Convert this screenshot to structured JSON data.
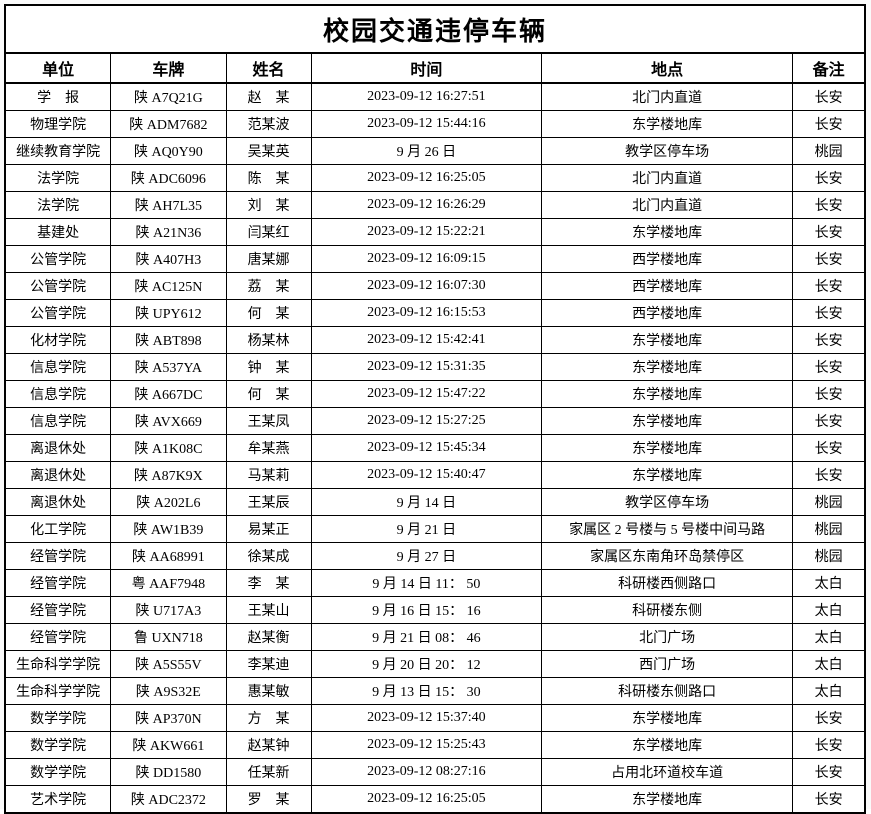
{
  "title": "校园交通违停车辆",
  "table": {
    "columns": [
      "单位",
      "车牌",
      "姓名",
      "时间",
      "地点",
      "备注"
    ],
    "rows": [
      [
        "学　报",
        "陕 A7Q21G",
        "赵　某",
        "2023-09-12 16:27:51",
        "北门内直道",
        "长安"
      ],
      [
        "物理学院",
        "陕 ADM7682",
        "范某波",
        "2023-09-12 15:44:16",
        "东学楼地库",
        "长安"
      ],
      [
        "继续教育学院",
        "陕 AQ0Y90",
        "吴某英",
        "9 月 26 日",
        "教学区停车场",
        "桃园"
      ],
      [
        "法学院",
        "陕 ADC6096",
        "陈　某",
        "2023-09-12 16:25:05",
        "北门内直道",
        "长安"
      ],
      [
        "法学院",
        "陕 AH7L35",
        "刘　某",
        "2023-09-12 16:26:29",
        "北门内直道",
        "长安"
      ],
      [
        "基建处",
        "陕 A21N36",
        "闫某红",
        "2023-09-12 15:22:21",
        "东学楼地库",
        "长安"
      ],
      [
        "公管学院",
        "陕 A407H3",
        "唐某娜",
        "2023-09-12 16:09:15",
        "西学楼地库",
        "长安"
      ],
      [
        "公管学院",
        "陕 AC125N",
        "荔　某",
        "2023-09-12 16:07:30",
        "西学楼地库",
        "长安"
      ],
      [
        "公管学院",
        "陕 UPY612",
        "何　某",
        "2023-09-12 16:15:53",
        "西学楼地库",
        "长安"
      ],
      [
        "化材学院",
        "陕 ABT898",
        "杨某林",
        "2023-09-12 15:42:41",
        "东学楼地库",
        "长安"
      ],
      [
        "信息学院",
        "陕 A537YA",
        "钟　某",
        "2023-09-12 15:31:35",
        "东学楼地库",
        "长安"
      ],
      [
        "信息学院",
        "陕 A667DC",
        "何　某",
        "2023-09-12 15:47:22",
        "东学楼地库",
        "长安"
      ],
      [
        "信息学院",
        "陕 AVX669",
        "王某凤",
        "2023-09-12 15:27:25",
        "东学楼地库",
        "长安"
      ],
      [
        "离退休处",
        "陕 A1K08C",
        "牟某燕",
        "2023-09-12 15:45:34",
        "东学楼地库",
        "长安"
      ],
      [
        "离退休处",
        "陕 A87K9X",
        "马某莉",
        "2023-09-12 15:40:47",
        "东学楼地库",
        "长安"
      ],
      [
        "离退休处",
        "陕 A202L6",
        "王某辰",
        "9 月 14 日",
        "教学区停车场",
        "桃园"
      ],
      [
        "化工学院",
        "陕 AW1B39",
        "易某正",
        "9 月 21 日",
        "家属区 2 号楼与 5 号楼中间马路",
        "桃园"
      ],
      [
        "经管学院",
        "陕 AA68991",
        "徐某成",
        "9 月 27 日",
        "家属区东南角环岛禁停区",
        "桃园"
      ],
      [
        "经管学院",
        "粤 AAF7948",
        "李　某",
        "9 月 14 日  11： 50",
        "科研楼西侧路口",
        "太白"
      ],
      [
        "经管学院",
        "陕 U717A3",
        "王某山",
        "9 月 16 日  15： 16",
        "科研楼东侧",
        "太白"
      ],
      [
        "经管学院",
        "鲁 UXN718",
        "赵某衡",
        "9 月 21 日  08： 46",
        "北门广场",
        "太白"
      ],
      [
        "生命科学学院",
        "陕 A5S55V",
        "李某迪",
        "9 月 20 日  20： 12",
        "西门广场",
        "太白"
      ],
      [
        "生命科学学院",
        "陕 A9S32E",
        "惠某敏",
        "9 月 13 日  15： 30",
        "科研楼东侧路口",
        "太白"
      ],
      [
        "数学学院",
        "陕 AP370N",
        "方　某",
        "2023-09-12 15:37:40",
        "东学楼地库",
        "长安"
      ],
      [
        "数学学院",
        "陕 AKW661",
        "赵某钟",
        "2023-09-12 15:25:43",
        "东学楼地库",
        "长安"
      ],
      [
        "数学学院",
        "陕 DD1580",
        "任某新",
        "2023-09-12 08:27:16",
        "占用北环道校车道",
        "长安"
      ],
      [
        "艺术学院",
        "陕 ADC2372",
        "罗　某",
        "2023-09-12 16:25:05",
        "东学楼地库",
        "长安"
      ]
    ]
  },
  "colors": {
    "border": "#000000",
    "text": "#000000",
    "background": "#ffffff"
  }
}
